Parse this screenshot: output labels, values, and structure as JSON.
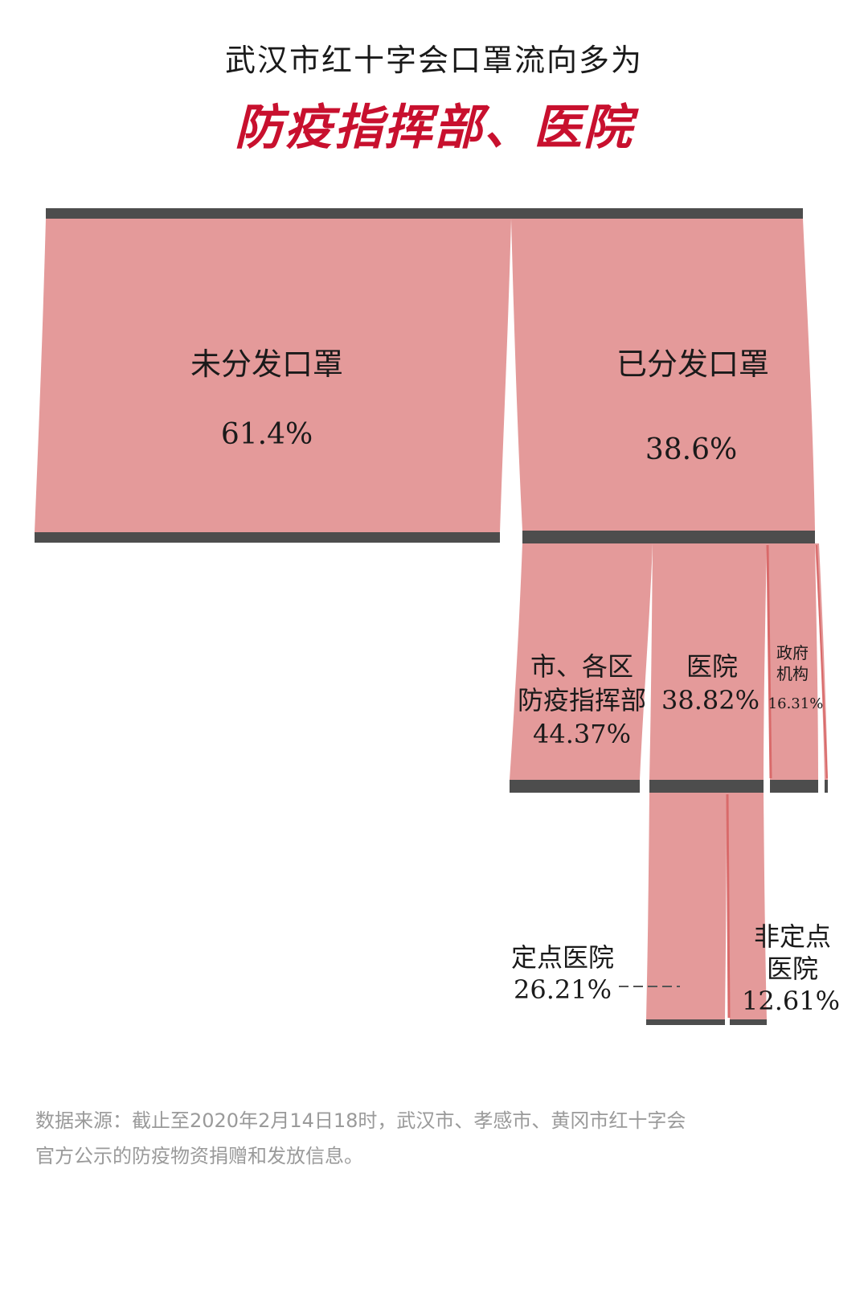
{
  "title": {
    "line1": "武汉市红十字会口罩流向多为",
    "line2": "防疫指挥部、医院"
  },
  "colors": {
    "flow": "#e49a9a",
    "flow_edge": "#d96a6a",
    "bar": "#4d4d4d",
    "accent": "#c8102e"
  },
  "chart_data": {
    "type": "sankey",
    "nodes": {
      "undistributed": {
        "label": "未分发口罩",
        "value": "61.4%"
      },
      "distributed": {
        "label": "已分发口罩",
        "value": "38.6%"
      },
      "command": {
        "label_lines": [
          "市、各区",
          "防疫指挥部"
        ],
        "value": "44.37%"
      },
      "hospital": {
        "label": "医院",
        "value": "38.82%"
      },
      "government": {
        "label_lines": [
          "政府",
          "机构"
        ],
        "value": "16.31%"
      },
      "designated": {
        "label": "定点医院",
        "value": "26.21%"
      },
      "non_designated": {
        "label_lines": [
          "非定点",
          "医院"
        ],
        "value": "12.61%"
      }
    }
  },
  "source_note": {
    "line1": "数据来源：截止至2020年2月14日18时，武汉市、孝感市、黄冈市红十字会",
    "line2": "官方公示的防疫物资捐赠和发放信息。"
  }
}
